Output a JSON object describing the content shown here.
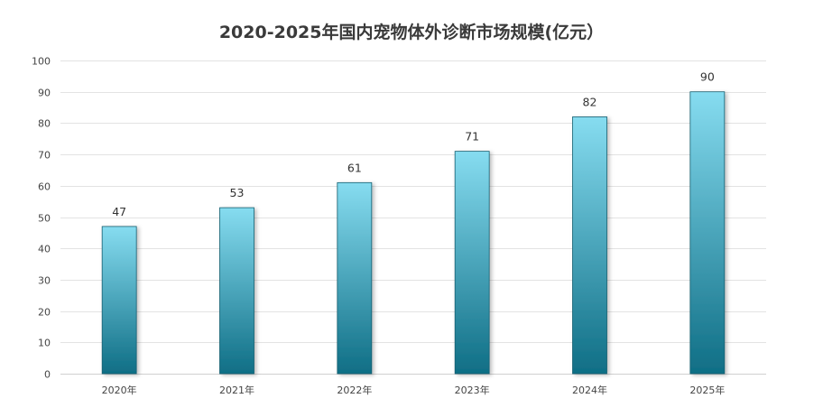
{
  "chart_data": {
    "type": "bar",
    "title": "2020-2025年国内宠物体外诊断市场规模(亿元）",
    "xlabel": "",
    "ylabel": "",
    "categories": [
      "2020年",
      "2021年",
      "2022年",
      "2023年",
      "2024年",
      "2025年"
    ],
    "series": [
      {
        "values": [
          47,
          53,
          61,
          71,
          82,
          90
        ]
      }
    ],
    "ylim": [
      0,
      100
    ],
    "yticks": [
      0,
      10,
      20,
      30,
      40,
      50,
      60,
      70,
      80,
      90,
      100
    ],
    "grid": true,
    "legend": "none",
    "data_labels": true,
    "colors": {
      "bar_top": "#86dcf0",
      "bar_bottom": "#0f6e85",
      "bar_border": "#155f70",
      "grid": "#e3e3e3"
    }
  }
}
